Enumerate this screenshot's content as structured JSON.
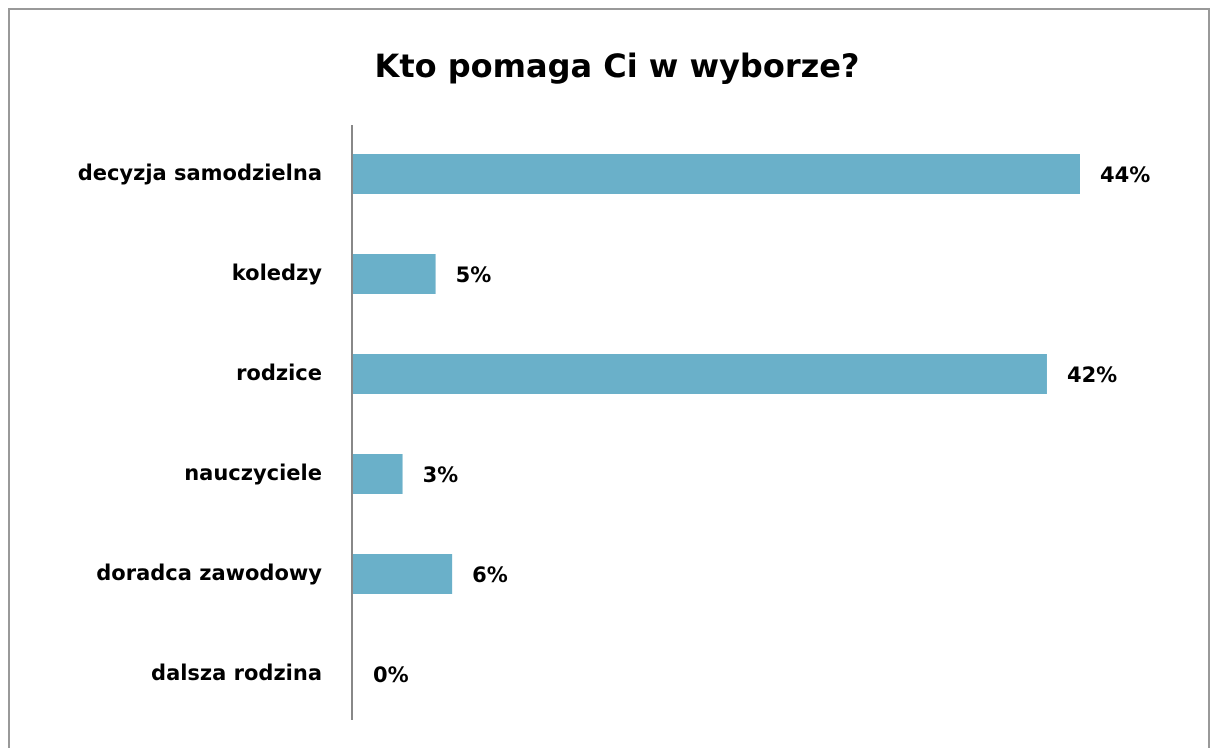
{
  "chart_data": {
    "type": "bar",
    "orientation": "horizontal",
    "title": "Kto pomaga Ci w wyborze?",
    "categories": [
      "decyzja samodzielna",
      "koledzy",
      "rodzice",
      "nauczyciele",
      "doradca zawodowy",
      "dalsza rodzina"
    ],
    "values": [
      44,
      5,
      42,
      3,
      6,
      0
    ],
    "value_labels": [
      "44%",
      "5%",
      "42%",
      "3%",
      "6%",
      "0%"
    ],
    "color": "#6ab0c9"
  }
}
